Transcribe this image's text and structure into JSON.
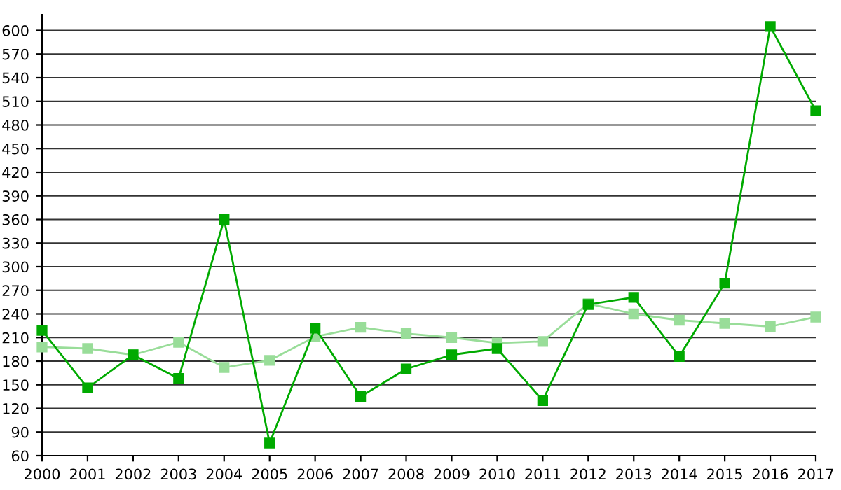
{
  "chart_data": {
    "type": "line",
    "x": [
      2000,
      2001,
      2002,
      2003,
      2004,
      2005,
      2006,
      2007,
      2008,
      2009,
      2010,
      2011,
      2012,
      2013,
      2014,
      2015,
      2016,
      2017
    ],
    "series": [
      {
        "color": "#99dd99",
        "values": [
          198,
          196,
          188,
          204,
          172,
          181,
          211,
          223,
          215,
          210,
          203,
          205,
          253,
          240,
          232,
          228,
          224,
          236
        ]
      },
      {
        "color": "#00aa00",
        "values": [
          219,
          146,
          188,
          158,
          360,
          76,
          222,
          135,
          170,
          188,
          196,
          130,
          252,
          261,
          186,
          279,
          605,
          498
        ]
      }
    ],
    "xlim": [
      2000,
      2017
    ],
    "xticks": [
      2000,
      2001,
      2002,
      2003,
      2004,
      2005,
      2006,
      2007,
      2008,
      2009,
      2010,
      2011,
      2012,
      2013,
      2014,
      2015,
      2016,
      2017
    ],
    "ylim": [
      60,
      620
    ],
    "yticks": [
      60,
      90,
      120,
      150,
      180,
      210,
      240,
      270,
      300,
      330,
      360,
      390,
      420,
      450,
      480,
      510,
      540,
      570,
      600
    ],
    "grid": "y",
    "marker": "square",
    "line_style": "solid"
  }
}
